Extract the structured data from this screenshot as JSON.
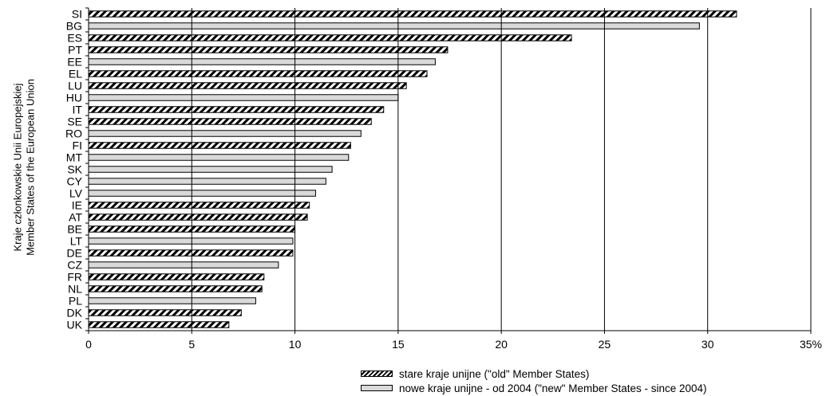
{
  "chart_data": {
    "type": "bar",
    "orientation": "horizontal",
    "ylabel_line1": "Kraje członkowskie Unii Europejskiej",
    "ylabel_line2": "Member States of the European Union",
    "xlim": [
      0,
      35
    ],
    "xticks": [
      "0",
      "5",
      "10",
      "15",
      "20",
      "25",
      "30",
      "35%"
    ],
    "grid": "vertical",
    "categories": [
      "SI",
      "BG",
      "ES",
      "PT",
      "EE",
      "EL",
      "LU",
      "HU",
      "IT",
      "SE",
      "RO",
      "FI",
      "MT",
      "SK",
      "CY",
      "LV",
      "IE",
      "AT",
      "BE",
      "LT",
      "DE",
      "CZ",
      "FR",
      "NL",
      "PL",
      "DK",
      "UK"
    ],
    "values": [
      31.4,
      29.6,
      23.4,
      17.4,
      16.8,
      16.4,
      15.4,
      15.0,
      14.3,
      13.7,
      13.2,
      12.7,
      12.6,
      11.8,
      11.5,
      11.0,
      10.7,
      10.6,
      10.0,
      9.9,
      9.9,
      9.2,
      8.5,
      8.4,
      8.1,
      7.4,
      6.8
    ],
    "group": [
      "old",
      "new",
      "old",
      "old",
      "new",
      "old",
      "old",
      "new",
      "old",
      "old",
      "new",
      "old",
      "new",
      "new",
      "new",
      "new",
      "old",
      "old",
      "old",
      "new",
      "old",
      "new",
      "old",
      "old",
      "new",
      "old",
      "old"
    ],
    "legend": [
      {
        "key": "old",
        "label": "stare kraje unijne  (\"old\" Member States)"
      },
      {
        "key": "new",
        "label": "nowe kraje unijne - od 2004  (\"new\" Member States - since 2004)"
      }
    ],
    "legend_position": "bottom-right",
    "colors": {
      "old_fill": "hatched black/white",
      "new_fill": "#d9d9d9",
      "bar_stroke": "#000000",
      "grid": "#000000"
    }
  }
}
